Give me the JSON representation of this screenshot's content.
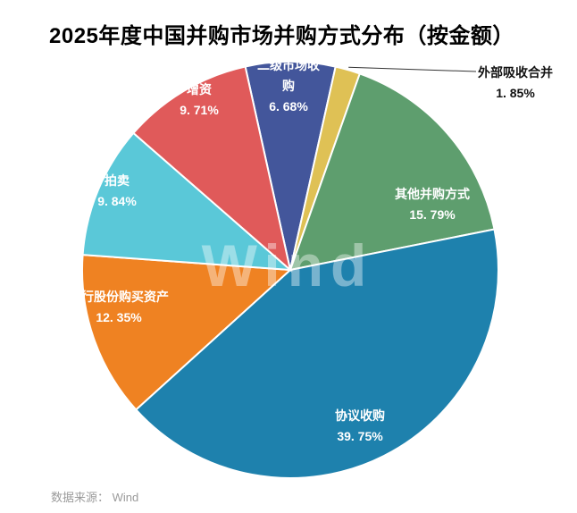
{
  "chart_data": {
    "type": "pie",
    "title": "2025年度中国并购市场并购方式分布（按金额）",
    "series": [
      {
        "label": "二级市场收购",
        "value": 6.68,
        "display": "6. 68%",
        "color": "#43569b"
      },
      {
        "label": "外部吸收合并",
        "value": 1.85,
        "display": "1. 85%",
        "color": "#dfc155"
      },
      {
        "label": "其他并购方式",
        "value": 15.79,
        "display": "15. 79%",
        "color": "#5e9e6e"
      },
      {
        "label": "协议收购",
        "value": 39.75,
        "display": "39. 75%",
        "color": "#1e81ad"
      },
      {
        "label": "发行股份购买资产",
        "value": 12.35,
        "display": "12. 35%",
        "color": "#ef8222"
      },
      {
        "label": "拍卖",
        "value": 9.84,
        "display": "9. 84%",
        "color": "#5ac8d8"
      },
      {
        "label": "增资",
        "value": 9.71,
        "display": "9. 71%",
        "color": "#e05a5a"
      }
    ],
    "legend_position": "none",
    "grid": false,
    "watermark": "Wind",
    "source_note": "数据来源： Wind"
  }
}
